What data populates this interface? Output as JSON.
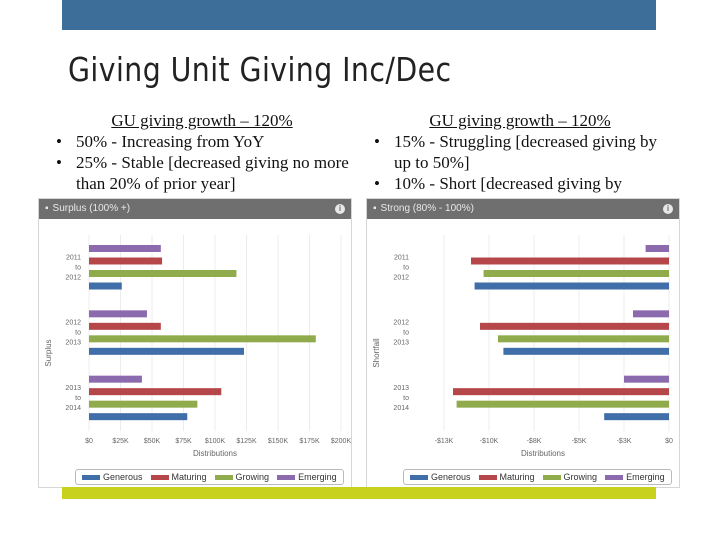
{
  "slide": {
    "title": "Giving Unit Giving Inc/Dec",
    "left_text": {
      "title": "GU giving growth – 120%",
      "bullets": [
        "50% - Increasing from YoY",
        "25% - Stable [decreased giving no more than  20% of prior year]"
      ]
    },
    "right_text": {
      "title": "GU giving growth – 120%",
      "bullets": [
        "15% - Struggling [decreased giving by up to 50%]",
        "10% - Short [decreased giving by"
      ]
    }
  },
  "colors": {
    "top_bar": "#3d6d99",
    "bottom_bar": "#c8d21e",
    "panel_header": "#6f6f6f"
  },
  "chart_data": [
    {
      "type": "bar",
      "orientation": "horizontal",
      "panel_title": "Surplus (100% +)",
      "categories": [
        [
          "2011",
          "to",
          "2012"
        ],
        [
          "2012",
          "to",
          "2013"
        ],
        [
          "2013",
          "to",
          "2014"
        ]
      ],
      "ylabel": "Surplus",
      "xlabel": "Distributions",
      "xlim": [
        0,
        200000
      ],
      "xticks": [
        0,
        25000,
        50000,
        75000,
        100000,
        125000,
        150000,
        175000,
        200000
      ],
      "xtick_labels": [
        "$0",
        "$25K",
        "$50K",
        "$75K",
        "$100K",
        "$125K",
        "$150K",
        "$175K",
        "$200K"
      ],
      "series": [
        {
          "name": "Emerging",
          "color": "#8b6aad",
          "values": [
            57000,
            46000,
            42000
          ]
        },
        {
          "name": "Maturing",
          "color": "#b5474b",
          "values": [
            58000,
            57000,
            105000
          ]
        },
        {
          "name": "Growing",
          "color": "#8fab4c",
          "values": [
            117000,
            180000,
            86000
          ]
        },
        {
          "name": "Generous",
          "color": "#3f6ea8",
          "values": [
            26000,
            123000,
            78000
          ]
        }
      ],
      "legend": [
        "Generous",
        "Maturing",
        "Growing",
        "Emerging"
      ],
      "legend_position": "bottom",
      "grid": true
    },
    {
      "type": "bar",
      "orientation": "horizontal",
      "panel_title": "Strong (80% - 100%)",
      "categories": [
        [
          "2011",
          "to",
          "2012"
        ],
        [
          "2012",
          "to",
          "2013"
        ],
        [
          "2013",
          "to",
          "2014"
        ]
      ],
      "ylabel": "Shortfall",
      "xlabel": "Distributions",
      "xlim": [
        -14000,
        0
      ],
      "xticks": [
        -12500,
        -10000,
        -7500,
        -5000,
        -2500,
        0
      ],
      "xtick_labels": [
        "-$13K",
        "-$10K",
        "-$8K",
        "-$5K",
        "-$3K",
        "$0"
      ],
      "series": [
        {
          "name": "Emerging",
          "color": "#8b6aad",
          "values": [
            -1300,
            -2000,
            -2500
          ]
        },
        {
          "name": "Maturing",
          "color": "#b5474b",
          "values": [
            -11000,
            -10500,
            -12000
          ]
        },
        {
          "name": "Growing",
          "color": "#8fab4c",
          "values": [
            -10300,
            -9500,
            -11800
          ]
        },
        {
          "name": "Generous",
          "color": "#3f6ea8",
          "values": [
            -10800,
            -9200,
            -3600
          ]
        }
      ],
      "legend": [
        "Generous",
        "Maturing",
        "Growing",
        "Emerging"
      ],
      "legend_position": "bottom",
      "grid": true
    }
  ]
}
